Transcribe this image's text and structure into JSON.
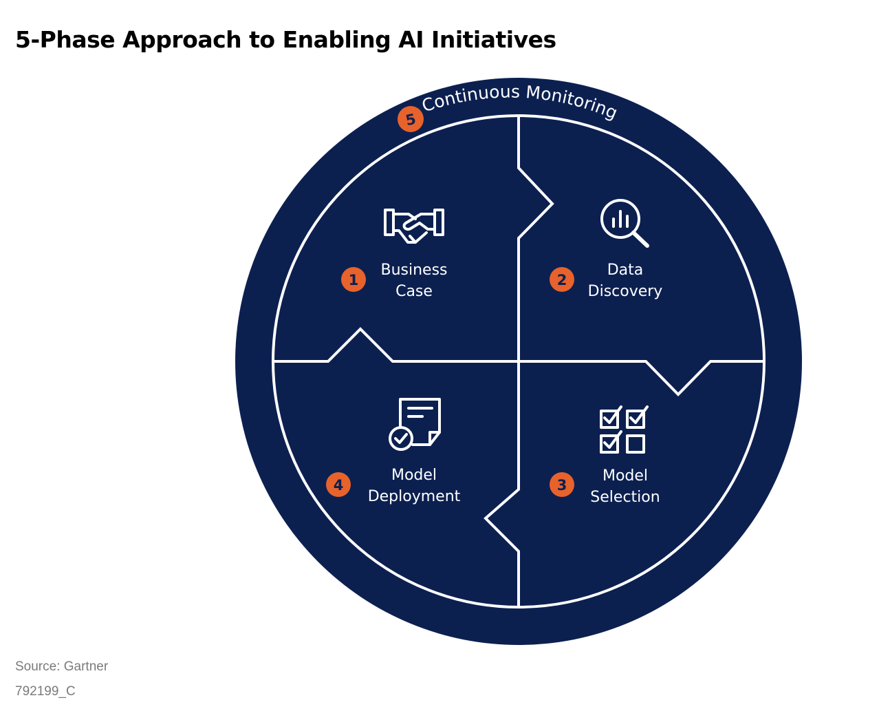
{
  "title": "5-Phase Approach to Enabling AI Initiatives",
  "colors": {
    "navy": "#0c2050",
    "orange": "#e8622c",
    "white": "#ffffff"
  },
  "ring": {
    "number": "5",
    "label": "Continuous Monitoring"
  },
  "phases": [
    {
      "number": "1",
      "line1": "Business",
      "line2": "Case",
      "icon": "handshake-icon"
    },
    {
      "number": "2",
      "line1": "Data",
      "line2": "Discovery",
      "icon": "magnifier-chart-icon"
    },
    {
      "number": "3",
      "line1": "Model",
      "line2": "Selection",
      "icon": "checklist-grid-icon"
    },
    {
      "number": "4",
      "line1": "Model",
      "line2": "Deployment",
      "icon": "document-check-icon"
    }
  ],
  "source": "Source: Gartner",
  "figure_id": "792199_C"
}
